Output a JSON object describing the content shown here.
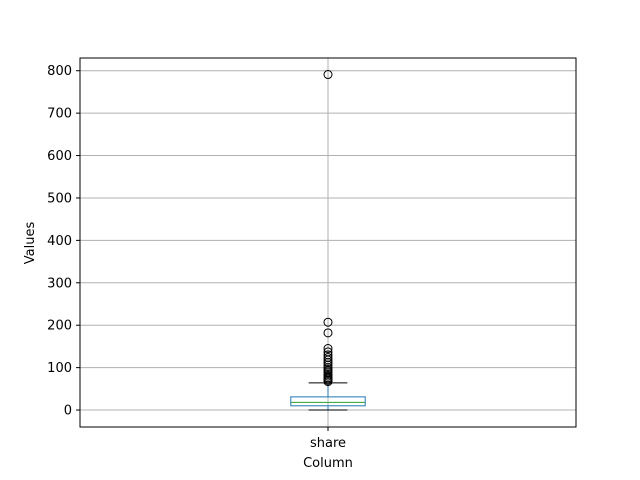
{
  "chart_data": {
    "type": "box",
    "xlabel": "Column",
    "ylabel": "Values",
    "categories": [
      "share"
    ],
    "ylim": [
      -40,
      830
    ],
    "yticks": [
      0,
      100,
      200,
      300,
      400,
      500,
      600,
      700,
      800
    ],
    "grid": true,
    "boxes": [
      {
        "name": "share",
        "whisker_low": 0,
        "q1": 10,
        "median": 18,
        "q3": 31,
        "whisker_high": 64,
        "outliers": [
          67,
          70,
          73,
          76,
          80,
          84,
          88,
          92,
          96,
          100,
          106,
          112,
          118,
          124,
          130,
          137,
          145,
          182,
          207,
          791
        ]
      }
    ],
    "colors": {
      "box": "#1f77b4",
      "median": "#2ca02c",
      "whisker": "#000000",
      "grid": "#b0b0b0",
      "outlier": "#000000"
    }
  }
}
